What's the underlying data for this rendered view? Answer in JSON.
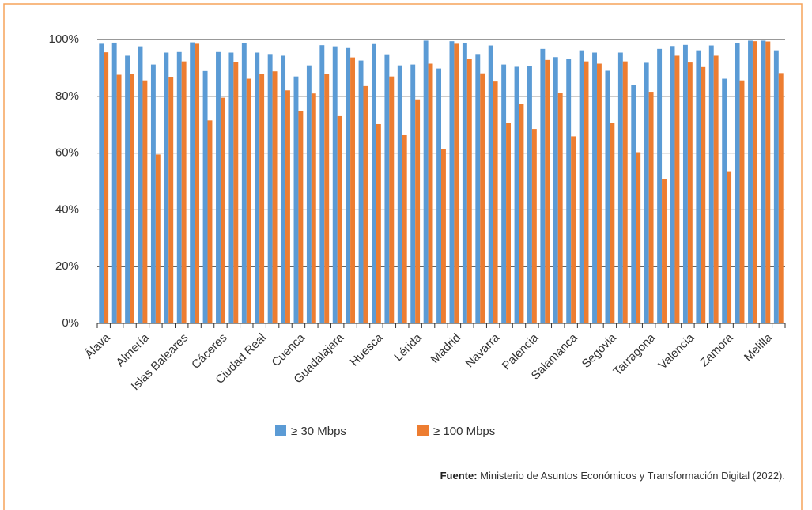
{
  "chart_data": {
    "type": "bar",
    "categories": [
      "Álava",
      null,
      null,
      "Almería",
      null,
      null,
      "Islas Baleares",
      null,
      null,
      "Cáceres",
      null,
      null,
      "Ciudad Real",
      null,
      null,
      "Cuenca",
      null,
      null,
      "Guadalajara",
      null,
      null,
      "Huesca",
      null,
      null,
      "Lérida",
      null,
      null,
      "Madrid",
      null,
      null,
      "Navarra",
      null,
      null,
      "Palencia",
      null,
      null,
      "Salamanca",
      null,
      null,
      "Segovia",
      null,
      null,
      "Tarragona",
      null,
      null,
      "Valencia",
      null,
      null,
      "Zamora",
      null,
      null,
      "Melilla",
      null
    ],
    "series": [
      {
        "name": "≥ 30 Mbps",
        "color": "#5b9bd5",
        "values": [
          98.5,
          98.9,
          94.3,
          97.6,
          91.2,
          95.4,
          95.6,
          99.0,
          88.9,
          95.6,
          95.4,
          98.8,
          95.4,
          94.9,
          94.3,
          87.0,
          90.9,
          98.0,
          97.6,
          97.0,
          92.6,
          98.4,
          94.8,
          90.9,
          91.2,
          99.6,
          89.8,
          99.4,
          98.7,
          94.9,
          97.9,
          91.2,
          90.4,
          90.8,
          96.7,
          93.8,
          93.1,
          96.2,
          95.4,
          89.0,
          95.4,
          84.0,
          91.8,
          96.7,
          97.7,
          98.1,
          96.2,
          97.9,
          86.2,
          98.8,
          99.6,
          99.6,
          96.2
        ]
      },
      {
        "name": "≥ 100 Mbps",
        "color": "#ed7d31",
        "values": [
          95.5,
          87.6,
          88.0,
          85.6,
          59.5,
          86.8,
          92.3,
          98.5,
          71.5,
          79.5,
          92.0,
          86.2,
          87.9,
          88.8,
          82.1,
          74.8,
          81.0,
          87.8,
          73.0,
          93.7,
          83.6,
          70.2,
          87.0,
          66.3,
          78.9,
          91.5,
          61.5,
          98.5,
          93.2,
          88.1,
          85.2,
          70.6,
          77.3,
          68.5,
          92.8,
          81.3,
          65.9,
          92.3,
          91.5,
          70.5,
          92.3,
          60.3,
          81.6,
          50.8,
          94.3,
          91.9,
          90.3,
          94.3,
          53.6,
          85.6,
          99.4,
          99.3,
          88.2
        ]
      }
    ],
    "ylim": [
      0,
      100
    ],
    "yticks": [
      {
        "value": 0,
        "label": "0%"
      },
      {
        "value": 20,
        "label": "20%"
      },
      {
        "value": 40,
        "label": "40%"
      },
      {
        "value": 60,
        "label": "60%"
      },
      {
        "value": 80,
        "label": "80%"
      },
      {
        "value": 100,
        "label": "100%"
      }
    ],
    "grid": true,
    "source_label": "Fuente:",
    "source": "Ministerio de Asuntos Económicos y Transformación Digital (2022)."
  }
}
